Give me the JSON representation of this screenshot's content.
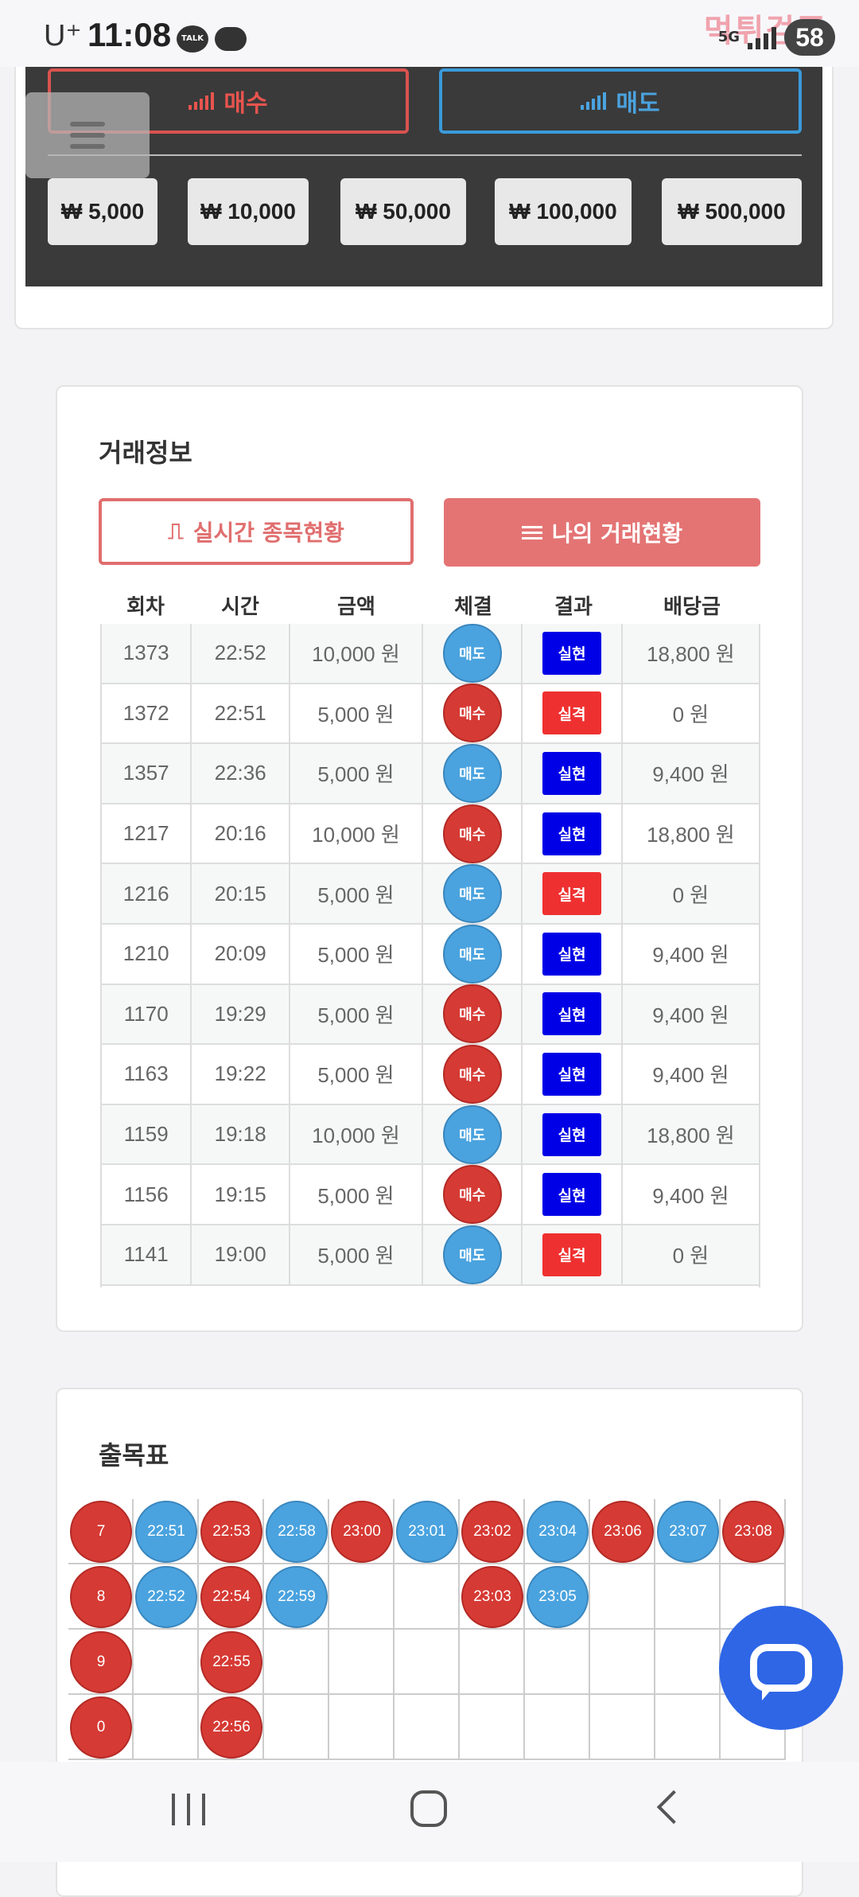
{
  "status_bar": {
    "carrier": "U⁺",
    "time": "11:08",
    "talk_label": "TALK",
    "network": "5G",
    "battery": "58",
    "watermark": "먹튀검증"
  },
  "trade_panel": {
    "buy_label": "매수",
    "sell_label": "매도",
    "amounts": [
      "₩ 5,000",
      "₩ 10,000",
      "₩ 50,000",
      "₩ 100,000",
      "₩ 500,000"
    ]
  },
  "trade_info": {
    "title": "거래정보",
    "tab_live": "실시간 종목현황",
    "tab_mine": "나의 거래현황",
    "columns": [
      "회차",
      "시간",
      "금액",
      "체결",
      "결과",
      "배당금"
    ],
    "rows": [
      {
        "round": "1373",
        "time": "22:52",
        "amount": "10,000 원",
        "side": "매도",
        "result": "실현",
        "payout": "18,800 원"
      },
      {
        "round": "1372",
        "time": "22:51",
        "amount": "5,000 원",
        "side": "매수",
        "result": "실격",
        "payout": "0 원"
      },
      {
        "round": "1357",
        "time": "22:36",
        "amount": "5,000 원",
        "side": "매도",
        "result": "실현",
        "payout": "9,400 원"
      },
      {
        "round": "1217",
        "time": "20:16",
        "amount": "10,000 원",
        "side": "매수",
        "result": "실현",
        "payout": "18,800 원"
      },
      {
        "round": "1216",
        "time": "20:15",
        "amount": "5,000 원",
        "side": "매도",
        "result": "실격",
        "payout": "0 원"
      },
      {
        "round": "1210",
        "time": "20:09",
        "amount": "5,000 원",
        "side": "매도",
        "result": "실현",
        "payout": "9,400 원"
      },
      {
        "round": "1170",
        "time": "19:29",
        "amount": "5,000 원",
        "side": "매수",
        "result": "실현",
        "payout": "9,400 원"
      },
      {
        "round": "1163",
        "time": "19:22",
        "amount": "5,000 원",
        "side": "매수",
        "result": "실현",
        "payout": "9,400 원"
      },
      {
        "round": "1159",
        "time": "19:18",
        "amount": "10,000 원",
        "side": "매도",
        "result": "실현",
        "payout": "18,800 원"
      },
      {
        "round": "1156",
        "time": "19:15",
        "amount": "5,000 원",
        "side": "매수",
        "result": "실현",
        "payout": "9,400 원"
      },
      {
        "round": "1141",
        "time": "19:00",
        "amount": "5,000 원",
        "side": "매도",
        "result": "실격",
        "payout": "0 원"
      }
    ]
  },
  "history": {
    "title": "출목표",
    "columns": [
      {
        "color": "red",
        "balls": [
          "7",
          "8",
          "9",
          "0"
        ]
      },
      {
        "color": "blue",
        "balls": [
          "22:51",
          "22:52"
        ]
      },
      {
        "color": "red",
        "balls": [
          "22:53",
          "22:54",
          "22:55",
          "22:56"
        ]
      },
      {
        "color": "blue",
        "balls": [
          "22:58",
          "22:59"
        ]
      },
      {
        "color": "red",
        "balls": [
          "23:00"
        ]
      },
      {
        "color": "blue",
        "balls": [
          "23:01"
        ]
      },
      {
        "color": "red",
        "balls": [
          "23:02",
          "23:03"
        ]
      },
      {
        "color": "blue",
        "balls": [
          "23:04",
          "23:05"
        ]
      },
      {
        "color": "red",
        "balls": [
          "23:06"
        ]
      },
      {
        "color": "blue",
        "balls": [
          "23:07"
        ]
      },
      {
        "color": "red",
        "balls": [
          "23:08"
        ]
      }
    ]
  },
  "colors": {
    "buy": "#d63a34",
    "sell": "#4aa3df",
    "win": "#0000e6",
    "lose": "#ef3030",
    "chat": "#2e66e6"
  }
}
